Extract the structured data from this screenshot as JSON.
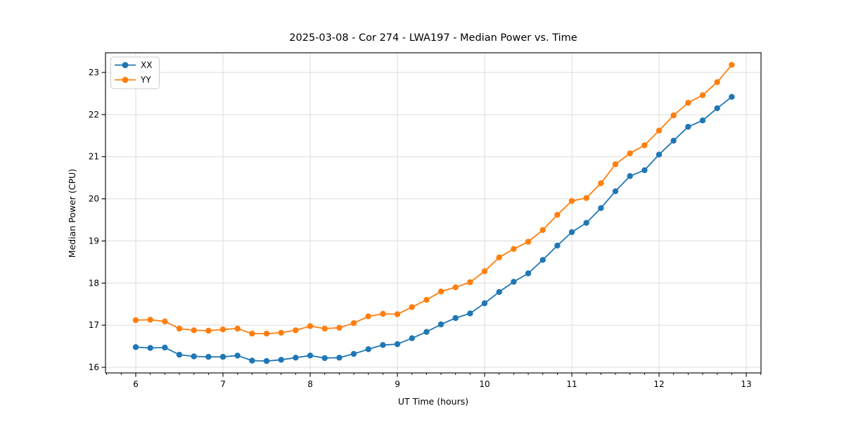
{
  "chart_data": {
    "type": "line",
    "title": "2025-03-08 - Cor 274 - LWA197 - Median Power vs. Time",
    "xlabel": "UT Time (hours)",
    "ylabel": "Median Power (CPU)",
    "xlim": [
      5.653,
      13.169
    ],
    "ylim": [
      15.867,
      23.467
    ],
    "xticks": [
      6,
      7,
      8,
      9,
      10,
      11,
      12,
      13
    ],
    "yticks": [
      16,
      17,
      18,
      19,
      20,
      21,
      22,
      23
    ],
    "x_minor_step": 0.16667,
    "grid": true,
    "grid_color": "#dcdcdc",
    "legend_position": "upper-left",
    "x": [
      6,
      6.1667,
      6.3333,
      6.5,
      6.6667,
      6.8333,
      7,
      7.1667,
      7.3333,
      7.5,
      7.6667,
      7.8333,
      8,
      8.1667,
      8.3333,
      8.5,
      8.6667,
      8.8333,
      9,
      9.1667,
      9.3333,
      9.5,
      9.6667,
      9.8333,
      10,
      10.1667,
      10.3333,
      10.5,
      10.6667,
      10.8333,
      11,
      11.1667,
      11.3333,
      11.5,
      11.6667,
      11.8333,
      12,
      12.1667,
      12.3333,
      12.5,
      12.6667,
      12.8333
    ],
    "series": [
      {
        "name": "XX",
        "color": "#1f77b4",
        "values": [
          16.48,
          16.46,
          16.47,
          16.3,
          16.26,
          16.25,
          16.25,
          16.28,
          16.16,
          16.15,
          16.18,
          16.23,
          16.28,
          16.22,
          16.23,
          16.32,
          16.43,
          16.53,
          16.55,
          16.69,
          16.84,
          17.02,
          17.17,
          17.28,
          17.52,
          17.79,
          18.03,
          18.23,
          18.55,
          18.89,
          19.21,
          19.43,
          19.78,
          20.18,
          20.54,
          20.68,
          21.05,
          21.38,
          21.71,
          21.86,
          22.15,
          22.42
        ]
      },
      {
        "name": "YY",
        "color": "#ff7f0e",
        "values": [
          17.12,
          17.13,
          17.09,
          16.92,
          16.88,
          16.87,
          16.9,
          16.92,
          16.8,
          16.8,
          16.82,
          16.88,
          16.98,
          16.92,
          16.94,
          17.05,
          17.21,
          17.27,
          17.26,
          17.43,
          17.6,
          17.8,
          17.9,
          18.02,
          18.28,
          18.61,
          18.81,
          18.98,
          19.26,
          19.62,
          19.95,
          20.02,
          20.37,
          20.82,
          21.08,
          21.27,
          21.62,
          21.98,
          22.28,
          22.46,
          22.77,
          23.18
        ]
      }
    ]
  }
}
